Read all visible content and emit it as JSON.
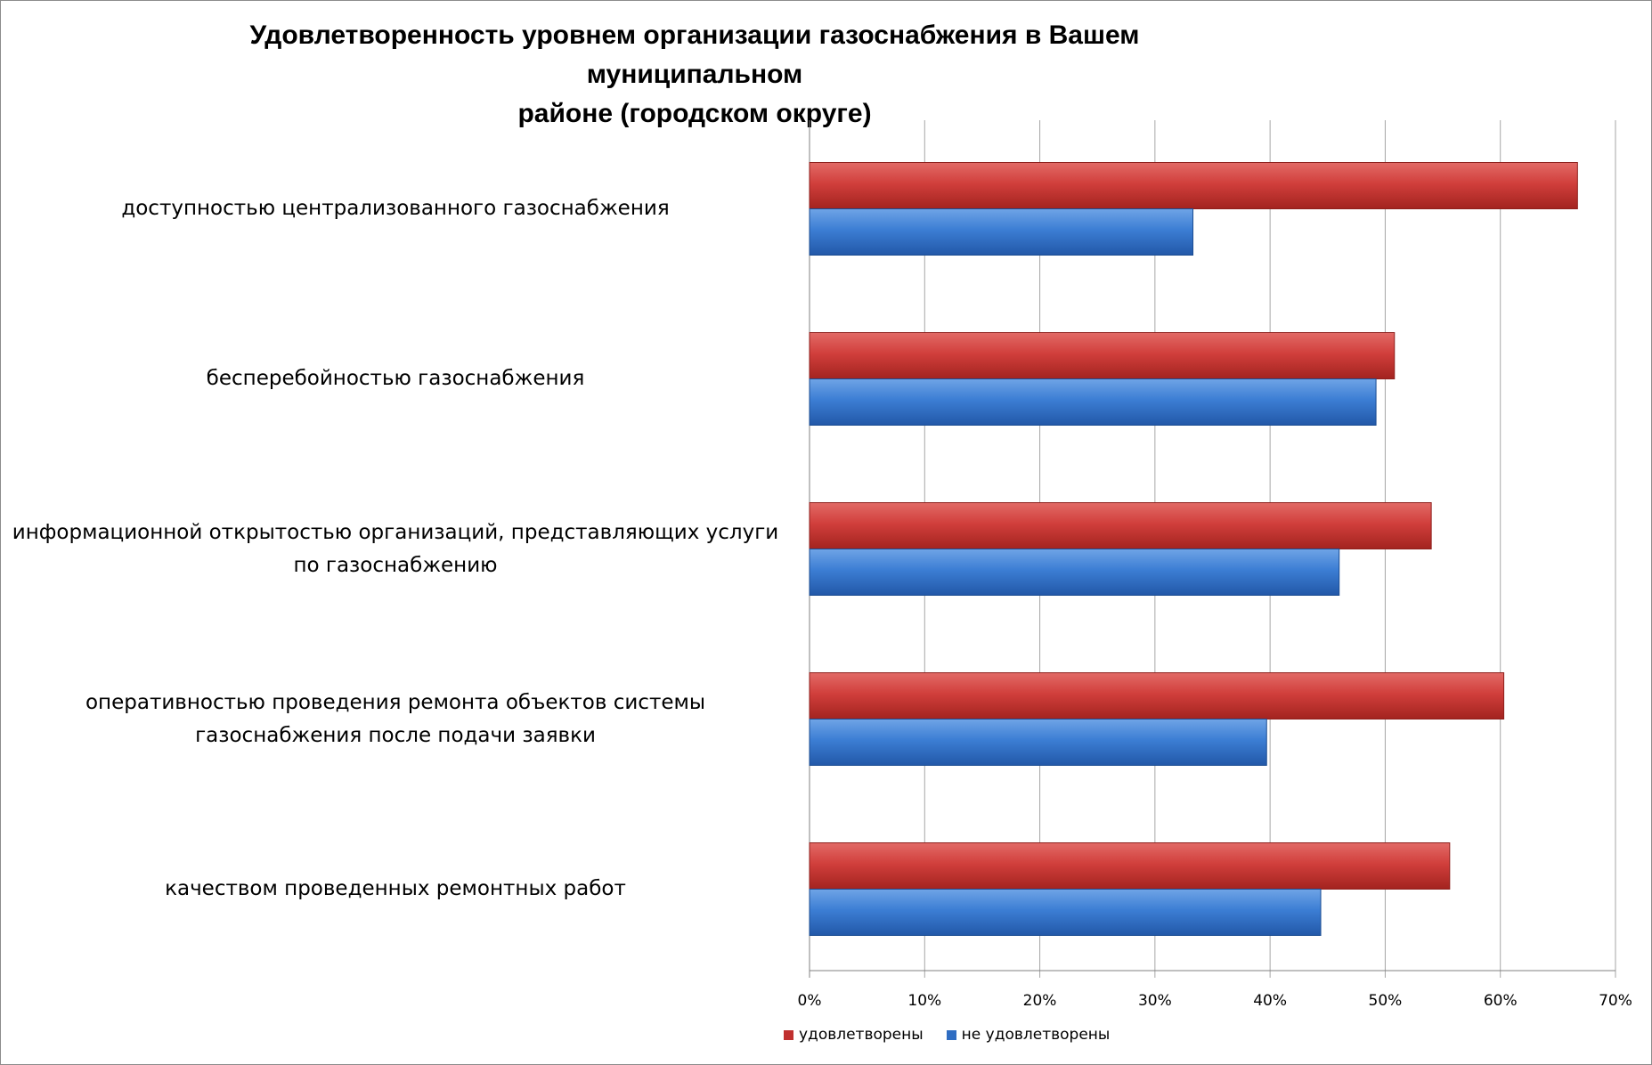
{
  "chart_data": {
    "type": "bar",
    "orientation": "horizontal",
    "title": "Удовлетворенность уровнем организации газоснабжения в Вашем муниципальном районе (городском округе)",
    "title_lines": [
      "Удовлетворенность уровнем организации газоснабжения в Вашем муниципальном",
      "районе (городском округе)"
    ],
    "categories": [
      "доступностью централизованного газоснабжения",
      "бесперебойностью газоснабжения",
      "информационной открытостью организаций, представляющих услуги по газоснабжению",
      "оперативностью проведения ремонта объектов системы газоснабжения после подачи заявки",
      "качеством проведенных ремонтных работ"
    ],
    "category_lines": [
      [
        "доступностью централизованного газоснабжения"
      ],
      [
        "бесперебойностью газоснабжения"
      ],
      [
        "информационной открытостью организаций, представляющих услуги",
        "по газоснабжению"
      ],
      [
        "оперативностью проведения ремонта объектов системы",
        "газоснабжения после подачи заявки"
      ],
      [
        "качеством проведенных ремонтных работ"
      ]
    ],
    "series": [
      {
        "name": "удовлетворены",
        "color": "#C0302F",
        "values": [
          66.7,
          50.8,
          54.0,
          60.3,
          55.6
        ]
      },
      {
        "name": "не удовлетворены",
        "color": "#2F6DC2",
        "values": [
          33.3,
          49.2,
          46.0,
          39.7,
          44.4
        ]
      }
    ],
    "xlim": [
      0,
      70
    ],
    "x_ticks": [
      "0%",
      "10%",
      "20%",
      "30%",
      "40%",
      "50%",
      "60%",
      "70%"
    ],
    "grid": true,
    "legend_position": "bottom"
  }
}
